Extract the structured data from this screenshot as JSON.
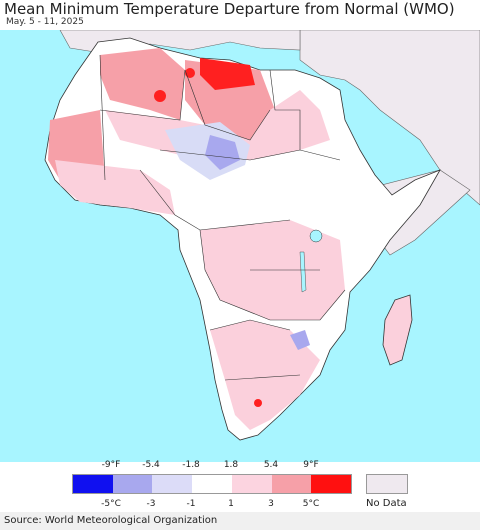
{
  "title": "Mean Minimum Temperature Departure from Normal (WMO)",
  "subtitle": "May. 5 - 11, 2025",
  "source": "Source: World Meteorological Organization",
  "colors": {
    "ocean": "#a8f5ff",
    "land_neutral": "#ffffff",
    "no_data": "#efe9ef",
    "border": "#333333",
    "light_warm": "#fbd0dc",
    "mid_warm": "#f6a0a8",
    "hot": "#ff2020",
    "cool_light": "#d8dcf6",
    "cool_mid": "#a8a8ee",
    "lake": "#a8f5ff"
  },
  "legend": {
    "fahrenheit_labels": [
      "-9°F",
      "-5.4",
      "-1.8",
      "1.8",
      "5.4",
      "9°F"
    ],
    "celsius_labels": [
      "-5°C",
      "-3",
      "-1",
      "1",
      "3",
      "5°C"
    ],
    "bins": [
      "#1010f0",
      "#a8a8ee",
      "#dcdcf8",
      "#ffffff",
      "#fcd4e0",
      "#f6a0a8",
      "#ff1010"
    ],
    "no_data_label": "No Data",
    "no_data_color": "#efe9ef"
  }
}
